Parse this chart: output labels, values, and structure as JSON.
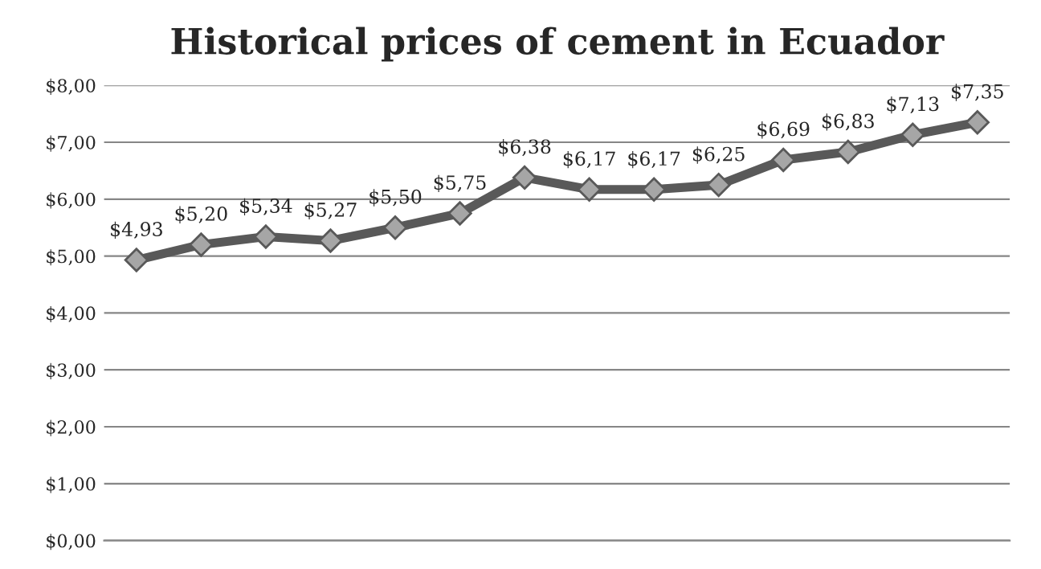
{
  "chart_data": {
    "type": "line",
    "title": "Historical prices of cement in Ecuador",
    "categories": [
      null,
      null,
      null,
      null,
      null,
      null,
      null,
      null,
      null,
      null,
      null,
      null,
      null,
      null
    ],
    "series": [
      {
        "color": "#595959",
        "values": [
          4.93,
          5.2,
          5.34,
          5.27,
          5.5,
          5.75,
          6.38,
          6.17,
          6.17,
          6.25,
          6.69,
          6.83,
          7.13,
          7.35
        ],
        "value_labels": [
          "$4,93",
          "$5,20",
          "$5,34",
          "$5,27",
          "$5,50",
          "$5,75",
          "$6,38",
          "$6,17",
          "$6,17",
          "$6,25",
          "$6,69",
          "$6,83",
          "$7,13",
          "$7,35"
        ]
      }
    ],
    "ylim": [
      0,
      8
    ],
    "yticks": [
      {
        "value": 0,
        "label": "$0,00"
      },
      {
        "value": 1,
        "label": "$1,00"
      },
      {
        "value": 2,
        "label": "$2,00"
      },
      {
        "value": 3,
        "label": "$3,00"
      },
      {
        "value": 4,
        "label": "$4,00"
      },
      {
        "value": 5,
        "label": "$5,00"
      },
      {
        "value": 6,
        "label": "$6,00"
      },
      {
        "value": 7,
        "label": "$7,00"
      },
      {
        "value": 8,
        "label": "$8,00"
      }
    ],
    "grid": "y",
    "marker": "diamond",
    "line_style": "solid",
    "tick_labels": "y",
    "legend": false
  }
}
